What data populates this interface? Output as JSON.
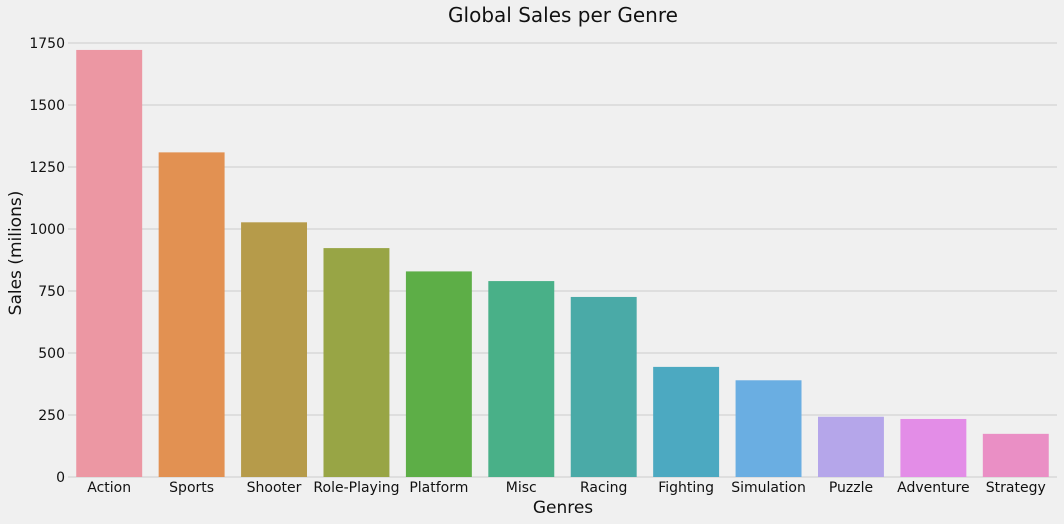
{
  "chart_data": {
    "type": "bar",
    "title": "Global Sales per Genre",
    "xlabel": "Genres",
    "ylabel": "Sales (milions)",
    "ylim": [
      0,
      1750
    ],
    "yticks": [
      0,
      250,
      500,
      750,
      1000,
      1250,
      1500,
      1750
    ],
    "grid": true,
    "categories": [
      "Action",
      "Sports",
      "Shooter",
      "Role-Playing",
      "Platform",
      "Misc",
      "Racing",
      "Fighting",
      "Simulation",
      "Puzzle",
      "Adventure",
      "Strategy"
    ],
    "values": [
      1722,
      1309,
      1027,
      923,
      829,
      790,
      726,
      444,
      390,
      243,
      234,
      174
    ],
    "colors": [
      "#ec97a3",
      "#e29152",
      "#b69b4a",
      "#98a545",
      "#5dae47",
      "#49b088",
      "#4aaaa7",
      "#4ca9c1",
      "#6aaee2",
      "#b5a6ea",
      "#e38de7",
      "#ea8fc5"
    ]
  }
}
